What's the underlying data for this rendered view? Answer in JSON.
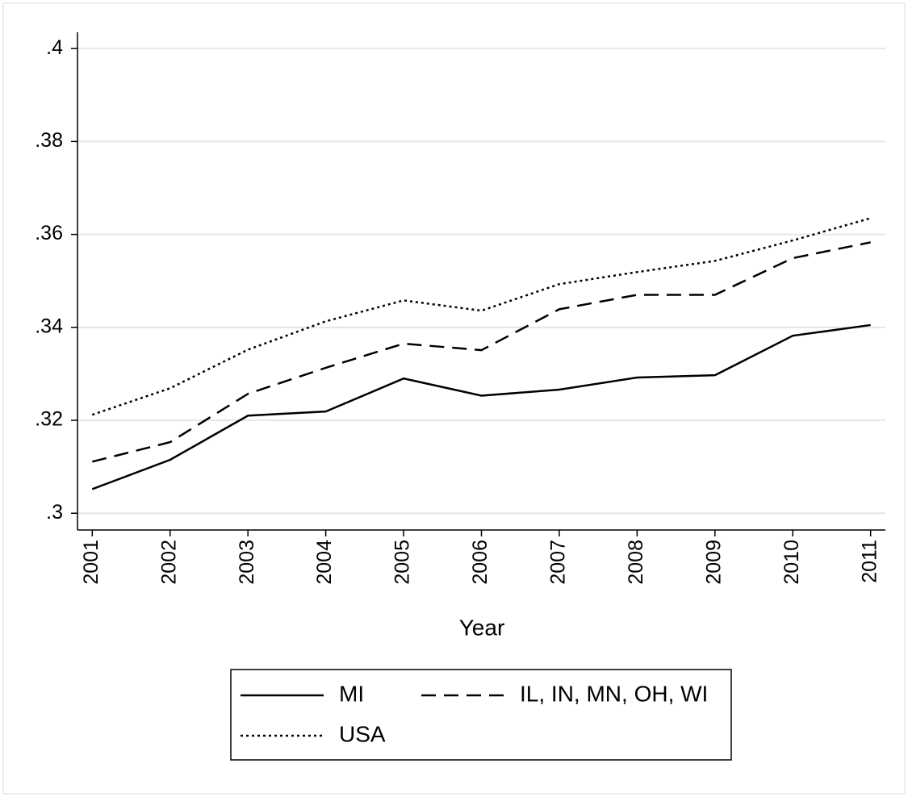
{
  "chart_data": {
    "type": "line",
    "x_label": "Year",
    "x": [
      2001,
      2002,
      2003,
      2004,
      2005,
      2006,
      2007,
      2008,
      2009,
      2010,
      2011
    ],
    "xlim": [
      2000.81,
      2011.19
    ],
    "xticks": [
      2001,
      2002,
      2003,
      2004,
      2005,
      2006,
      2007,
      2008,
      2009,
      2010,
      2011
    ],
    "ylim": [
      0.2964,
      0.4035
    ],
    "yticks": [
      {
        "value": 0.3,
        "label": ".3"
      },
      {
        "value": 0.32,
        "label": ".32"
      },
      {
        "value": 0.34,
        "label": ".34"
      },
      {
        "value": 0.36,
        "label": ".36"
      },
      {
        "value": 0.38,
        "label": ".38"
      },
      {
        "value": 0.4,
        "label": ".4"
      }
    ],
    "grid": true,
    "legend": "bottom",
    "series": [
      {
        "name": "MI",
        "color": "#000000",
        "dash": "solid",
        "values": [
          0.3052,
          0.3115,
          0.321,
          0.3219,
          0.329,
          0.3253,
          0.3266,
          0.3292,
          0.3297,
          0.3382,
          0.3405
        ]
      },
      {
        "name": "IL, IN, MN, OH, WI",
        "color": "#000000",
        "dash": "dashed",
        "values": [
          0.3111,
          0.3153,
          0.3257,
          0.3313,
          0.3365,
          0.3351,
          0.3439,
          0.347,
          0.347,
          0.3549,
          0.3583
        ]
      },
      {
        "name": "USA",
        "color": "#000000",
        "dash": "dotted",
        "values": [
          0.3212,
          0.3269,
          0.3352,
          0.3413,
          0.3458,
          0.3436,
          0.3493,
          0.3519,
          0.3543,
          0.3587,
          0.3635
        ]
      }
    ]
  }
}
